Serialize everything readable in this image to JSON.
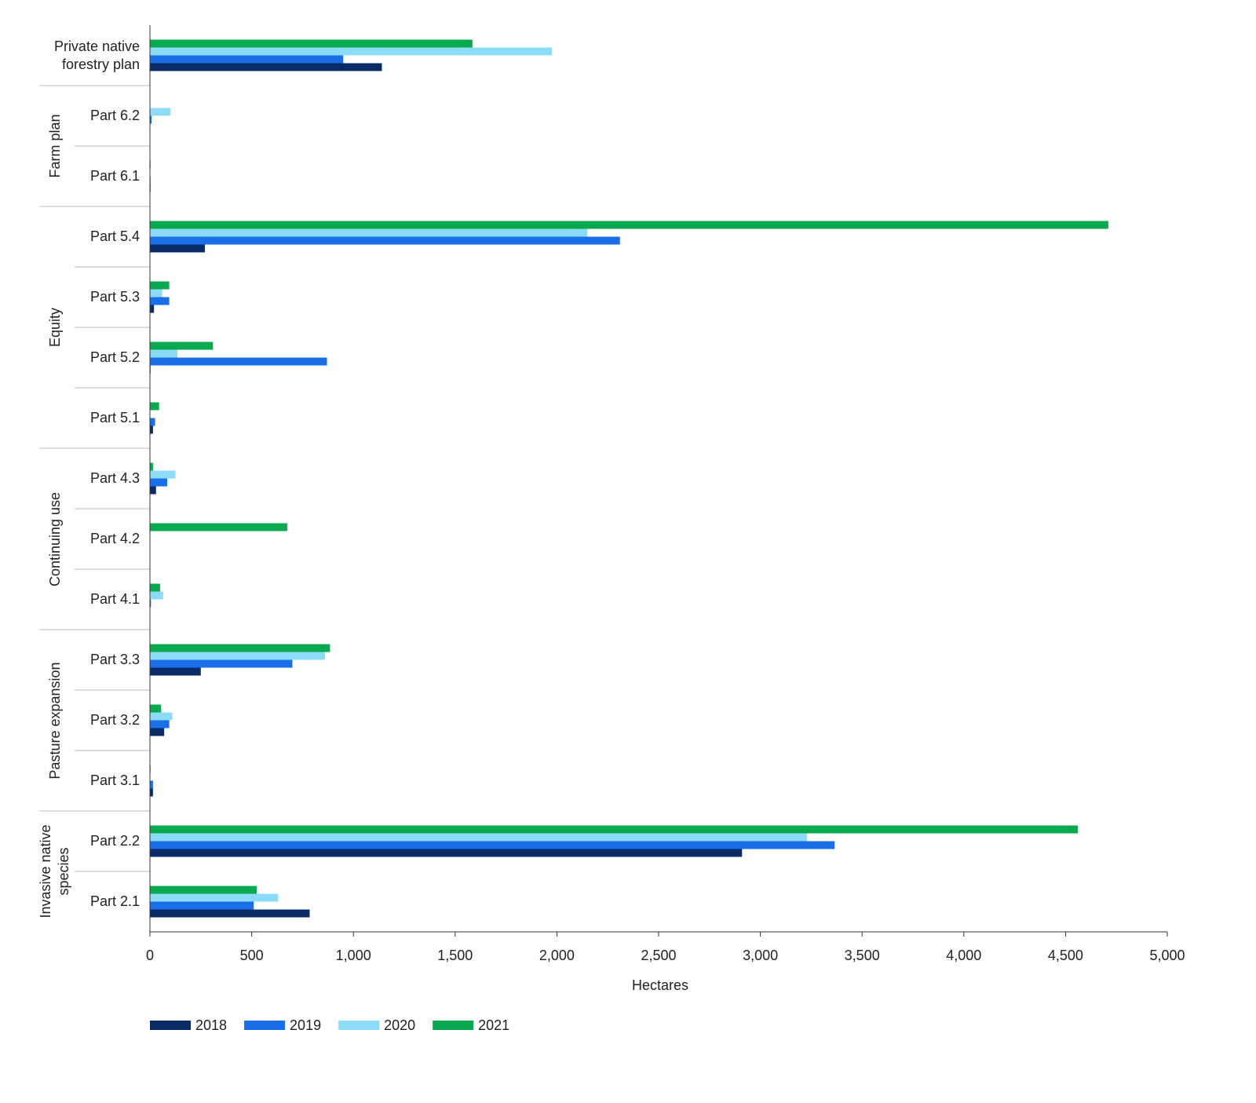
{
  "chart_data": {
    "type": "grouped-hbar",
    "x_label": "Hectares",
    "categories": [
      "Private native forestry plan",
      "Part 6.2",
      "Part 6.1",
      "Part 5.4",
      "Part 5.3",
      "Part 5.2",
      "Part 5.1",
      "Part 4.3",
      "Part 4.2",
      "Part 4.1",
      "Part 3.3",
      "Part 3.2",
      "Part 3.1",
      "Part 2.2",
      "Part 2.1"
    ],
    "groups": [
      null,
      "Farm plan",
      "Farm plan",
      "Equity",
      "Equity",
      "Equity",
      "Equity",
      "Continuing use",
      "Continuing use",
      "Continuing use",
      "Pasture expansion",
      "Pasture expansion",
      "Pasture expansion",
      "Invasive native species",
      "Invasive native species"
    ],
    "series": [
      {
        "name": "2018",
        "color": "#0b2b66",
        "values": [
          1140,
          2,
          3,
          270,
          20,
          3,
          15,
          30,
          0,
          0,
          250,
          70,
          15,
          2910,
          785
        ]
      },
      {
        "name": "2019",
        "color": "#1a6ee8",
        "values": [
          950,
          8,
          3,
          2310,
          95,
          870,
          25,
          85,
          0,
          5,
          700,
          95,
          15,
          3365,
          510
        ]
      },
      {
        "name": "2020",
        "color": "#8ddcf7",
        "values": [
          1975,
          100,
          0,
          2150,
          60,
          135,
          0,
          125,
          0,
          65,
          860,
          110,
          0,
          3230,
          630
        ]
      },
      {
        "name": "2021",
        "color": "#0aa84f",
        "values": [
          1585,
          0,
          3,
          4710,
          95,
          310,
          45,
          15,
          675,
          50,
          885,
          55,
          3,
          4560,
          525
        ]
      }
    ],
    "xlim": [
      0,
      5000
    ],
    "xticks": [
      0,
      500,
      {
        "value": 1000,
        "label": "1,000"
      },
      {
        "value": 1500,
        "label": "1,500"
      },
      {
        "value": 2000,
        "label": "2,000"
      },
      {
        "value": 2500,
        "label": "2,500"
      },
      {
        "value": 3000,
        "label": "3,000"
      },
      {
        "value": 3500,
        "label": "3,500"
      },
      {
        "value": 4000,
        "label": "4,000"
      },
      {
        "value": 4500,
        "label": "4,500"
      },
      {
        "value": 5000,
        "label": "5,000"
      }
    ],
    "legend": "bottom-left"
  }
}
